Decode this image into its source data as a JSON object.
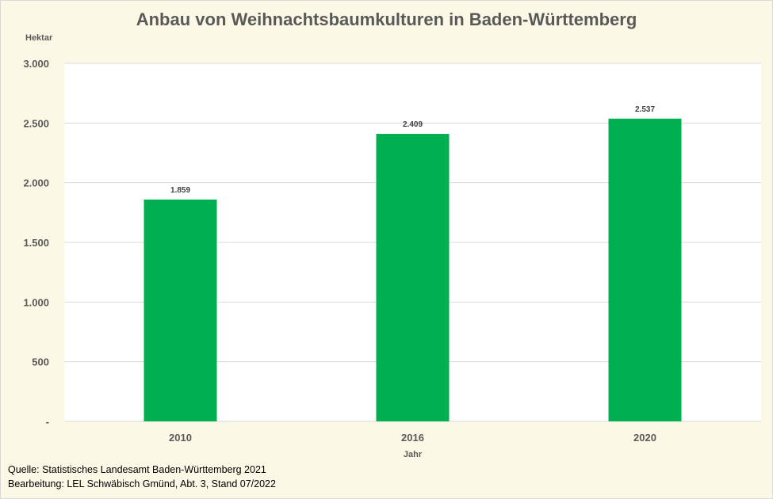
{
  "chart_data": {
    "type": "bar",
    "title": "Anbau von Weihnachtsbaumkulturen in Baden-Württemberg",
    "ylabel": "Hektar",
    "xlabel": "Jahr",
    "categories": [
      "2010",
      "2016",
      "2020"
    ],
    "values": [
      1859,
      2409,
      2537
    ],
    "value_labels": [
      "1.859",
      "2.409",
      "2.537"
    ],
    "ylim": [
      0,
      3000
    ],
    "yticks": [
      0,
      500,
      1000,
      1500,
      2000,
      2500,
      3000
    ],
    "ytick_labels": [
      "-",
      "500",
      "1.000",
      "1.500",
      "2.000",
      "2.500",
      "3.000"
    ],
    "grid": true,
    "bar_color": "#00B050"
  },
  "footer": {
    "source": "Quelle: Statistisches Landesamt Baden-Württemberg 2021",
    "editing": "Bearbeitung: LEL Schwäbisch Gmünd, Abt. 3, Stand 07/2022"
  }
}
